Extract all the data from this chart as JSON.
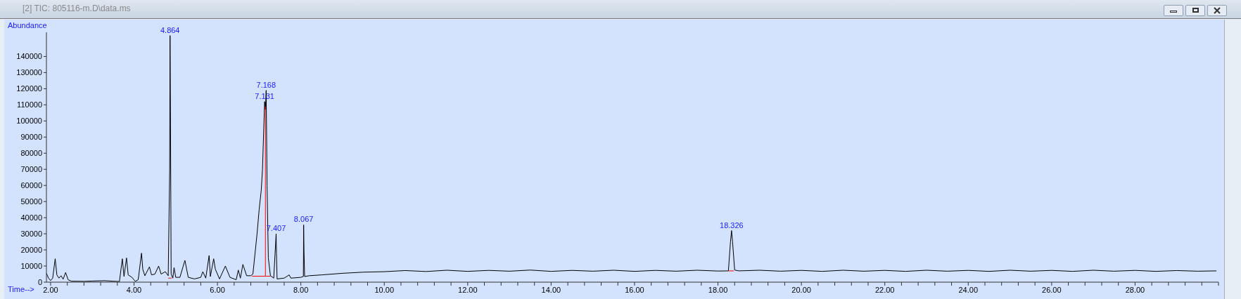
{
  "chart_data": {
    "type": "line",
    "title": "[2] TIC: 805116-m.D\\data.ms",
    "xlabel": "Time-->",
    "ylabel": "Abundance",
    "xlim": [
      1.9,
      30
    ],
    "ylim": [
      0,
      155000
    ],
    "xticks": [
      {
        "value": 2,
        "label": "2.00"
      },
      {
        "value": 2.4,
        "label": null
      },
      {
        "value": 2.8,
        "label": null
      },
      {
        "value": 3.2,
        "label": null
      },
      {
        "value": 3.6,
        "label": null
      },
      {
        "value": 4,
        "label": "4.00"
      },
      {
        "value": 4.4,
        "label": null
      },
      {
        "value": 4.8,
        "label": null
      },
      {
        "value": 5.2,
        "label": null
      },
      {
        "value": 5.6,
        "label": null
      },
      {
        "value": 6,
        "label": "6.00"
      },
      {
        "value": 6.4,
        "label": null
      },
      {
        "value": 6.8,
        "label": null
      },
      {
        "value": 7.2,
        "label": null
      },
      {
        "value": 7.6,
        "label": null
      },
      {
        "value": 8,
        "label": "8.00"
      },
      {
        "value": 8.4,
        "label": null
      },
      {
        "value": 8.8,
        "label": null
      },
      {
        "value": 9.2,
        "label": null
      },
      {
        "value": 9.6,
        "label": null
      },
      {
        "value": 10,
        "label": "10.00"
      },
      {
        "value": 10.4,
        "label": null
      },
      {
        "value": 10.8,
        "label": null
      },
      {
        "value": 11.2,
        "label": null
      },
      {
        "value": 11.6,
        "label": null
      },
      {
        "value": 12,
        "label": "12.00"
      },
      {
        "value": 12.4,
        "label": null
      },
      {
        "value": 12.8,
        "label": null
      },
      {
        "value": 13.2,
        "label": null
      },
      {
        "value": 13.6,
        "label": null
      },
      {
        "value": 14,
        "label": "14.00"
      },
      {
        "value": 14.4,
        "label": null
      },
      {
        "value": 14.8,
        "label": null
      },
      {
        "value": 15.2,
        "label": null
      },
      {
        "value": 15.6,
        "label": null
      },
      {
        "value": 16,
        "label": "16.00"
      },
      {
        "value": 16.4,
        "label": null
      },
      {
        "value": 16.8,
        "label": null
      },
      {
        "value": 17.2,
        "label": null
      },
      {
        "value": 17.6,
        "label": null
      },
      {
        "value": 18,
        "label": "18.00"
      },
      {
        "value": 18.4,
        "label": null
      },
      {
        "value": 18.8,
        "label": null
      },
      {
        "value": 19.2,
        "label": null
      },
      {
        "value": 19.6,
        "label": null
      },
      {
        "value": 20,
        "label": "20.00"
      },
      {
        "value": 20.4,
        "label": null
      },
      {
        "value": 20.8,
        "label": null
      },
      {
        "value": 21.2,
        "label": null
      },
      {
        "value": 21.6,
        "label": null
      },
      {
        "value": 22,
        "label": "22.00"
      },
      {
        "value": 22.4,
        "label": null
      },
      {
        "value": 22.8,
        "label": null
      },
      {
        "value": 23.2,
        "label": null
      },
      {
        "value": 23.6,
        "label": null
      },
      {
        "value": 24,
        "label": "24.00"
      },
      {
        "value": 24.4,
        "label": null
      },
      {
        "value": 24.8,
        "label": null
      },
      {
        "value": 25.2,
        "label": null
      },
      {
        "value": 25.6,
        "label": null
      },
      {
        "value": 26,
        "label": "26.00"
      },
      {
        "value": 26.4,
        "label": null
      },
      {
        "value": 26.8,
        "label": null
      },
      {
        "value": 27.2,
        "label": null
      },
      {
        "value": 27.6,
        "label": null
      },
      {
        "value": 28,
        "label": "28.00"
      },
      {
        "value": 28.4,
        "label": null
      },
      {
        "value": 28.8,
        "label": null
      },
      {
        "value": 29.2,
        "label": null
      },
      {
        "value": 29.6,
        "label": null
      },
      {
        "value": 30,
        "label": null
      }
    ],
    "yticks": [
      0,
      10000,
      20000,
      30000,
      40000,
      50000,
      60000,
      70000,
      80000,
      90000,
      100000,
      110000,
      120000,
      130000,
      140000
    ],
    "grid": false,
    "marker": "none",
    "line_style": "solid",
    "series": [
      {
        "color": "#000000",
        "x": [
          1.9,
          1.95,
          2.0,
          2.05,
          2.11,
          2.15,
          2.2,
          2.25,
          2.3,
          2.36,
          2.42,
          2.5,
          2.8,
          3.0,
          3.3,
          3.5,
          3.65,
          3.72,
          3.76,
          3.82,
          3.86,
          3.95,
          4.03,
          4.1,
          4.18,
          4.21,
          4.26,
          4.37,
          4.42,
          4.5,
          4.59,
          4.65,
          4.75,
          4.82,
          4.855,
          4.864,
          4.875,
          4.89,
          4.93,
          4.96,
          5.0,
          5.1,
          5.22,
          5.3,
          5.45,
          5.6,
          5.65,
          5.72,
          5.8,
          5.83,
          5.91,
          5.95,
          6.05,
          6.19,
          6.3,
          6.45,
          6.5,
          6.55,
          6.61,
          6.7,
          6.8,
          6.85,
          6.95,
          7.0,
          7.05,
          7.08,
          7.11,
          7.131,
          7.15,
          7.168,
          7.19,
          7.22,
          7.27,
          7.35,
          7.407,
          7.415,
          7.43,
          7.6,
          7.72,
          7.76,
          8.0,
          8.06,
          8.067,
          8.075,
          8.09,
          8.2,
          8.5,
          9.0,
          9.5,
          10.0,
          10.5,
          11.0,
          11.5,
          12.0,
          12.5,
          13.0,
          13.5,
          14.0,
          14.5,
          15.0,
          15.5,
          16.0,
          16.5,
          17.0,
          17.5,
          18.0,
          18.25,
          18.3,
          18.326,
          18.35,
          18.4,
          18.5,
          19.0,
          19.5,
          20.0,
          20.5,
          21.0,
          21.5,
          22.0,
          22.5,
          23.0,
          23.5,
          24.0,
          24.5,
          25.0,
          25.5,
          26.0,
          26.5,
          27.0,
          27.5,
          28.0,
          28.5,
          29.0,
          29.5,
          29.95
        ],
        "values": [
          5500,
          2500,
          1000,
          2500,
          14500,
          4500,
          2500,
          4000,
          1800,
          6000,
          1500,
          600,
          500,
          700,
          900,
          600,
          400,
          14500,
          3500,
          15000,
          4500,
          3000,
          500,
          1500,
          18000,
          8000,
          4000,
          9500,
          4500,
          5000,
          10000,
          5000,
          6500,
          4000,
          70000,
          153000,
          98000,
          5000,
          2500,
          9000,
          3000,
          3000,
          13500,
          3000,
          2000,
          3000,
          6500,
          2500,
          16500,
          3500,
          14500,
          8000,
          2000,
          10000,
          3000,
          1500,
          7500,
          2500,
          11000,
          4000,
          4000,
          5000,
          30000,
          45000,
          57000,
          70000,
          95000,
          112000,
          107000,
          119000,
          60000,
          15000,
          4000,
          2500,
          30000,
          18000,
          2000,
          2500,
          4500,
          2500,
          3000,
          3500,
          35500,
          20000,
          3500,
          4000,
          4500,
          5500,
          6200,
          6500,
          7200,
          6600,
          7400,
          6700,
          7300,
          6800,
          7500,
          6700,
          7300,
          6800,
          7400,
          6700,
          7300,
          6800,
          7400,
          6900,
          7000,
          25000,
          32000,
          25000,
          7500,
          7000,
          7400,
          6800,
          7300,
          6700,
          7400,
          6800,
          7300,
          6700,
          7400,
          6800,
          7300,
          6700,
          7400,
          6800,
          7300,
          6700,
          7400,
          6800,
          7300,
          6700,
          7200,
          6800,
          7000
        ]
      },
      {
        "color": "#ff0000",
        "x": [
          4.82,
          4.9
        ],
        "values": [
          2500,
          2500
        ]
      },
      {
        "color": "#ff0000",
        "x": [
          6.83,
          7.27
        ],
        "values": [
          3700,
          3700
        ]
      },
      {
        "color": "#ff0000",
        "x": [
          7.15,
          7.15
        ],
        "values": [
          3700,
          109000
        ]
      },
      {
        "color": "#ff0000",
        "x": [
          18.25,
          18.38
        ],
        "values": [
          7000,
          7000
        ]
      }
    ],
    "annotations": [
      {
        "text": "4.864",
        "x": 4.864,
        "y": 153000
      },
      {
        "text": "7.168",
        "x": 7.168,
        "y": 119000
      },
      {
        "text": "7.131",
        "x": 7.131,
        "y": 112000
      },
      {
        "text": "7.407",
        "x": 7.407,
        "y": 30000
      },
      {
        "text": "8.067",
        "x": 8.067,
        "y": 35500
      },
      {
        "text": "18.326",
        "x": 18.326,
        "y": 32000
      }
    ]
  }
}
